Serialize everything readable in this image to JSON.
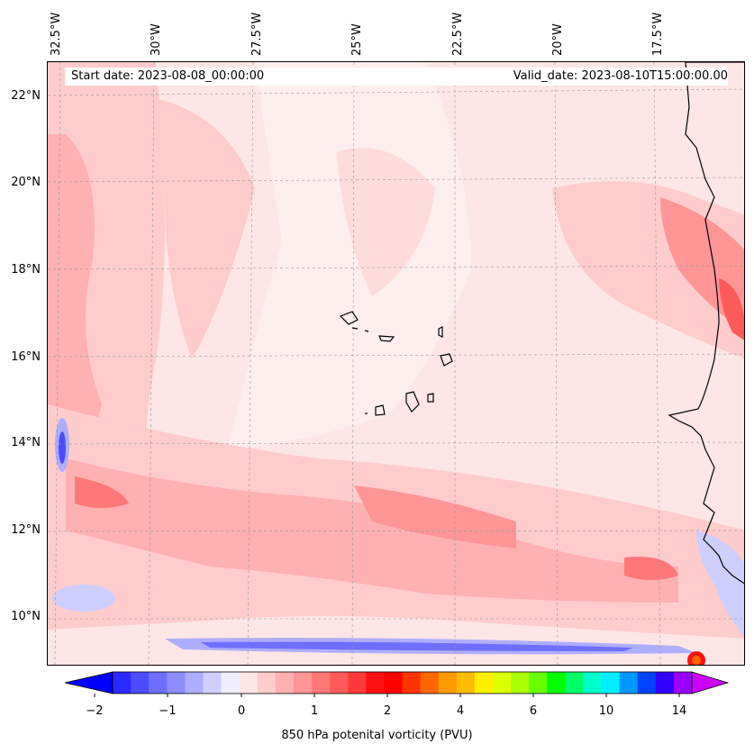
{
  "map": {
    "type": "contour map",
    "projection_extent": {
      "lon_min": -32.5,
      "lon_max": -15.5,
      "lat_min": 9,
      "lat_max": 22.8
    },
    "lon_ticks": [
      "32.5°W",
      "30°W",
      "27.5°W",
      "25°W",
      "22.5°W",
      "20°W",
      "17.5°W"
    ],
    "lat_ticks": [
      "22°N",
      "20°N",
      "18°N",
      "16°N",
      "14°N",
      "12°N",
      "10°N"
    ],
    "start_date": "Start date: 2023-08-08_00:00:00",
    "valid_date": "Valid_date: 2023-08-10T15:00:00.00",
    "features": [
      "Cape Verde islands",
      "West African coastline"
    ],
    "grid": "dashed gray"
  },
  "colorbar": {
    "label": "850 hPa potenital vorticity (PVU)",
    "ticks": [
      "−2",
      "−1",
      "0",
      "1",
      "2",
      "4",
      "6",
      "10",
      "14"
    ],
    "colors": [
      "#0000ff",
      "#2a2aff",
      "#4c4cff",
      "#6e6eff",
      "#8d8dff",
      "#aeaeff",
      "#cfcfff",
      "#eeeeff",
      "#ffe6e6",
      "#ffcccc",
      "#ffb0b0",
      "#ff9595",
      "#ff7777",
      "#ff5a5a",
      "#ff3939",
      "#ff1111",
      "#ff0000",
      "#ff3300",
      "#ff6600",
      "#ff9900",
      "#ffbb00",
      "#ffee00",
      "#ddff00",
      "#aaff00",
      "#66ff00",
      "#00ff00",
      "#00ff66",
      "#00ffcc",
      "#00eeff",
      "#0099ff",
      "#0044ff",
      "#3300ff",
      "#9900ff",
      "#cc00ff"
    ],
    "extend": "both"
  }
}
